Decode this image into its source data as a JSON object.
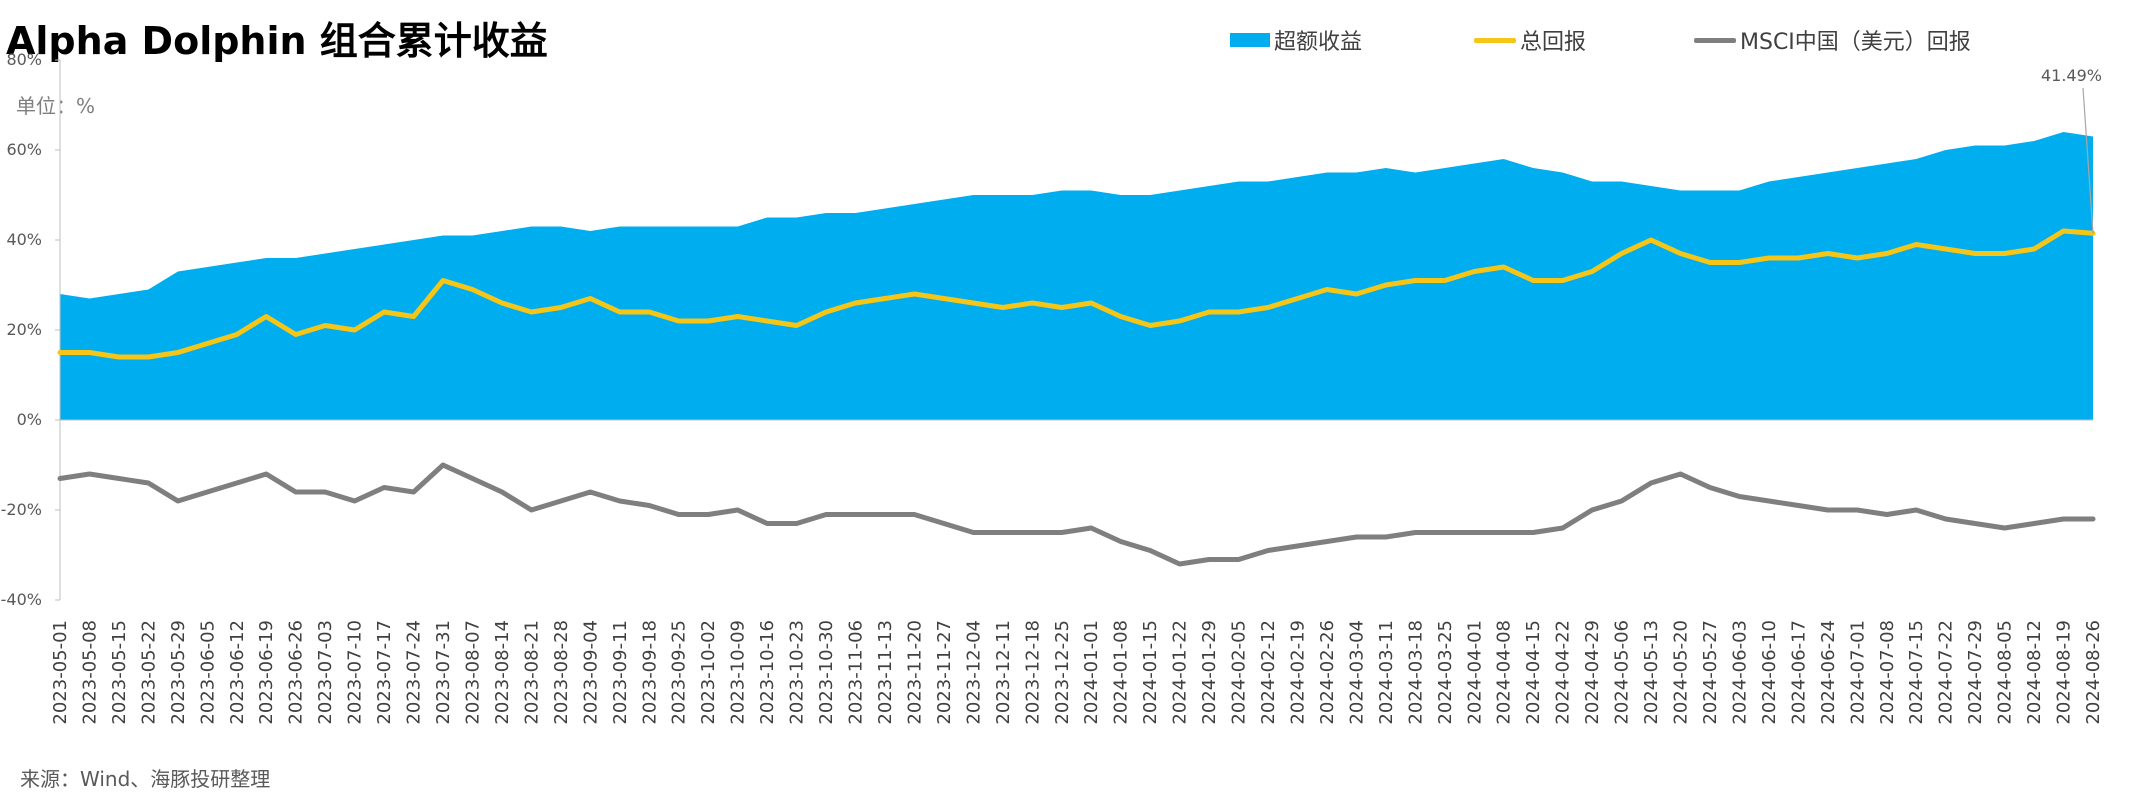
{
  "title": "Alpha Dolphin 组合累计收益",
  "unit_label": "单位：%",
  "source": "来源：Wind、海豚投研整理",
  "colors": {
    "excess": "#00aeef",
    "total": "#f5c518",
    "msci": "#7f7f7f"
  },
  "chart_data": {
    "type": "area",
    "title": "Alpha Dolphin 组合累计收益",
    "xlabel": "",
    "ylabel": "",
    "ylim": [
      -40,
      80
    ],
    "yticks": [
      -40,
      -20,
      0,
      20,
      40,
      60,
      80
    ],
    "ytick_labels": [
      "-40%",
      "-20%",
      "0%",
      "20%",
      "40%",
      "60%",
      "80%"
    ],
    "legend_position": "top",
    "grid": false,
    "last_value_label": "41.49%",
    "x": [
      "2023-05-01",
      "2023-05-08",
      "2023-05-15",
      "2023-05-22",
      "2023-05-29",
      "2023-06-05",
      "2023-06-12",
      "2023-06-19",
      "2023-06-26",
      "2023-07-03",
      "2023-07-10",
      "2023-07-17",
      "2023-07-24",
      "2023-07-31",
      "2023-08-07",
      "2023-08-14",
      "2023-08-21",
      "2023-08-28",
      "2023-09-04",
      "2023-09-11",
      "2023-09-18",
      "2023-09-25",
      "2023-10-02",
      "2023-10-09",
      "2023-10-16",
      "2023-10-23",
      "2023-10-30",
      "2023-11-06",
      "2023-11-13",
      "2023-11-20",
      "2023-11-27",
      "2023-12-04",
      "2023-12-11",
      "2023-12-18",
      "2023-12-25",
      "2024-01-01",
      "2024-01-08",
      "2024-01-15",
      "2024-01-22",
      "2024-01-29",
      "2024-02-05",
      "2024-02-12",
      "2024-02-19",
      "2024-02-26",
      "2024-03-04",
      "2024-03-11",
      "2024-03-18",
      "2024-03-25",
      "2024-04-01",
      "2024-04-08",
      "2024-04-15",
      "2024-04-22",
      "2024-04-29",
      "2024-05-06",
      "2024-05-13",
      "2024-05-20",
      "2024-05-27",
      "2024-06-03",
      "2024-06-10",
      "2024-06-17",
      "2024-06-24",
      "2024-07-01",
      "2024-07-08",
      "2024-07-15",
      "2024-07-22",
      "2024-07-29",
      "2024-08-05",
      "2024-08-12",
      "2024-08-19",
      "2024-08-26"
    ],
    "series": [
      {
        "name": "超额收益",
        "type": "area",
        "values": [
          28,
          27,
          28,
          29,
          33,
          34,
          35,
          36,
          36,
          37,
          38,
          39,
          40,
          41,
          41,
          42,
          43,
          43,
          42,
          43,
          43,
          43,
          43,
          43,
          45,
          45,
          46,
          46,
          47,
          48,
          49,
          50,
          50,
          50,
          51,
          51,
          50,
          50,
          51,
          52,
          53,
          53,
          54,
          55,
          55,
          56,
          55,
          56,
          57,
          58,
          56,
          55,
          53,
          53,
          52,
          51,
          51,
          51,
          53,
          54,
          55,
          56,
          57,
          58,
          60,
          61,
          61,
          62,
          64,
          63
        ]
      },
      {
        "name": "总回报",
        "type": "line",
        "values": [
          15,
          15,
          14,
          14,
          15,
          17,
          19,
          23,
          19,
          21,
          20,
          24,
          23,
          31,
          29,
          26,
          24,
          25,
          27,
          24,
          24,
          22,
          22,
          23,
          22,
          21,
          24,
          26,
          27,
          28,
          27,
          26,
          25,
          26,
          25,
          26,
          23,
          21,
          22,
          24,
          24,
          25,
          27,
          29,
          28,
          30,
          31,
          31,
          33,
          34,
          31,
          31,
          33,
          37,
          40,
          37,
          35,
          35,
          36,
          36,
          37,
          36,
          37,
          39,
          38,
          37,
          37,
          38,
          42,
          41.49
        ]
      },
      {
        "name": "MSCI中国（美元）回报",
        "type": "line",
        "values": [
          -13,
          -12,
          -13,
          -14,
          -18,
          -16,
          -14,
          -12,
          -16,
          -16,
          -18,
          -15,
          -16,
          -10,
          -13,
          -16,
          -20,
          -18,
          -16,
          -18,
          -19,
          -21,
          -21,
          -20,
          -23,
          -23,
          -21,
          -21,
          -21,
          -21,
          -23,
          -25,
          -25,
          -25,
          -25,
          -24,
          -27,
          -29,
          -32,
          -31,
          -31,
          -29,
          -28,
          -27,
          -26,
          -26,
          -25,
          -25,
          -25,
          -25,
          -25,
          -24,
          -20,
          -18,
          -14,
          -12,
          -15,
          -17,
          -18,
          -19,
          -20,
          -20,
          -21,
          -20,
          -22,
          -23,
          -24,
          -23,
          -22,
          -22
        ]
      }
    ]
  }
}
